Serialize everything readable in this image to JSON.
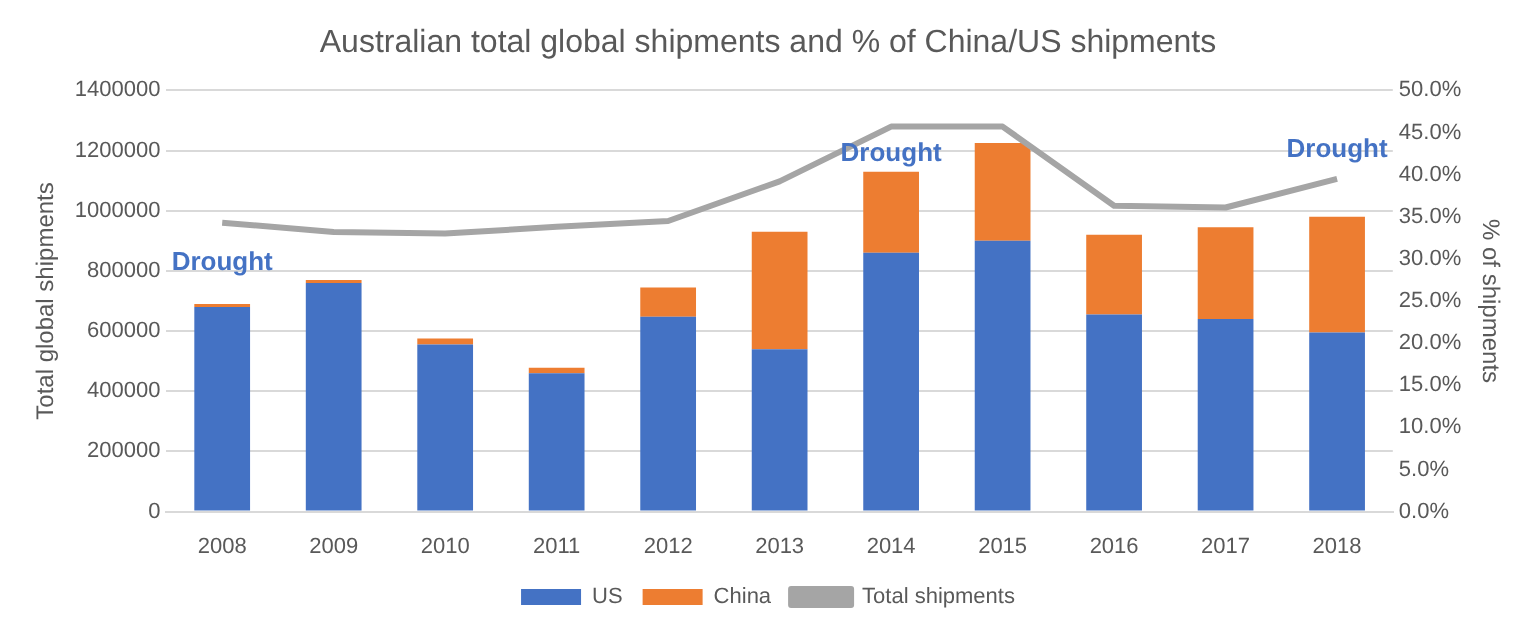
{
  "chart_data": {
    "type": "bar",
    "title": "Australian total global shipments and % of China/US shipments",
    "ylabel": "Total global shipments",
    "y2label": "% of shipments",
    "categories": [
      "2008",
      "2009",
      "2010",
      "2011",
      "2012",
      "2013",
      "2014",
      "2015",
      "2016",
      "2017",
      "2018"
    ],
    "stacked": true,
    "series": [
      {
        "name": "US",
        "color": "#4472c4",
        "values": [
          680000,
          760000,
          555000,
          460000,
          648000,
          540000,
          860000,
          900000,
          655000,
          640000,
          595000
        ]
      },
      {
        "name": "China",
        "color": "#ed7d31",
        "values": [
          10000,
          10000,
          20000,
          18000,
          97000,
          390000,
          270000,
          325000,
          265000,
          305000,
          385000
        ]
      },
      {
        "name": "Total shipments",
        "type": "line",
        "axis": "y2",
        "color": "#a5a5a5",
        "marker": "none",
        "values": [
          34.3,
          33.2,
          33.0,
          33.8,
          34.5,
          39.2,
          45.7,
          45.7,
          36.3,
          36.1,
          39.5
        ]
      }
    ],
    "ylim": [
      0,
      1400000
    ],
    "yticks": [
      0,
      200000,
      400000,
      600000,
      800000,
      1000000,
      1200000,
      1400000
    ],
    "y2lim": [
      0,
      50
    ],
    "y2ticks": [
      {
        "value": 0,
        "label": "0.0%"
      },
      {
        "value": 5,
        "label": "5.0%"
      },
      {
        "value": 10,
        "label": "10.0%"
      },
      {
        "value": 15,
        "label": "15.0%"
      },
      {
        "value": 20,
        "label": "20.0%"
      },
      {
        "value": 25,
        "label": "25.0%"
      },
      {
        "value": 30,
        "label": "30.0%"
      },
      {
        "value": 35,
        "label": "35.0%"
      },
      {
        "value": 40,
        "label": "40.0%"
      },
      {
        "value": 45,
        "label": "45.0%"
      },
      {
        "value": 50,
        "label": "50.0%"
      }
    ],
    "annotations": [
      "Drought",
      "Drought",
      "Drought"
    ],
    "grid": "y",
    "legend": "bottom"
  }
}
